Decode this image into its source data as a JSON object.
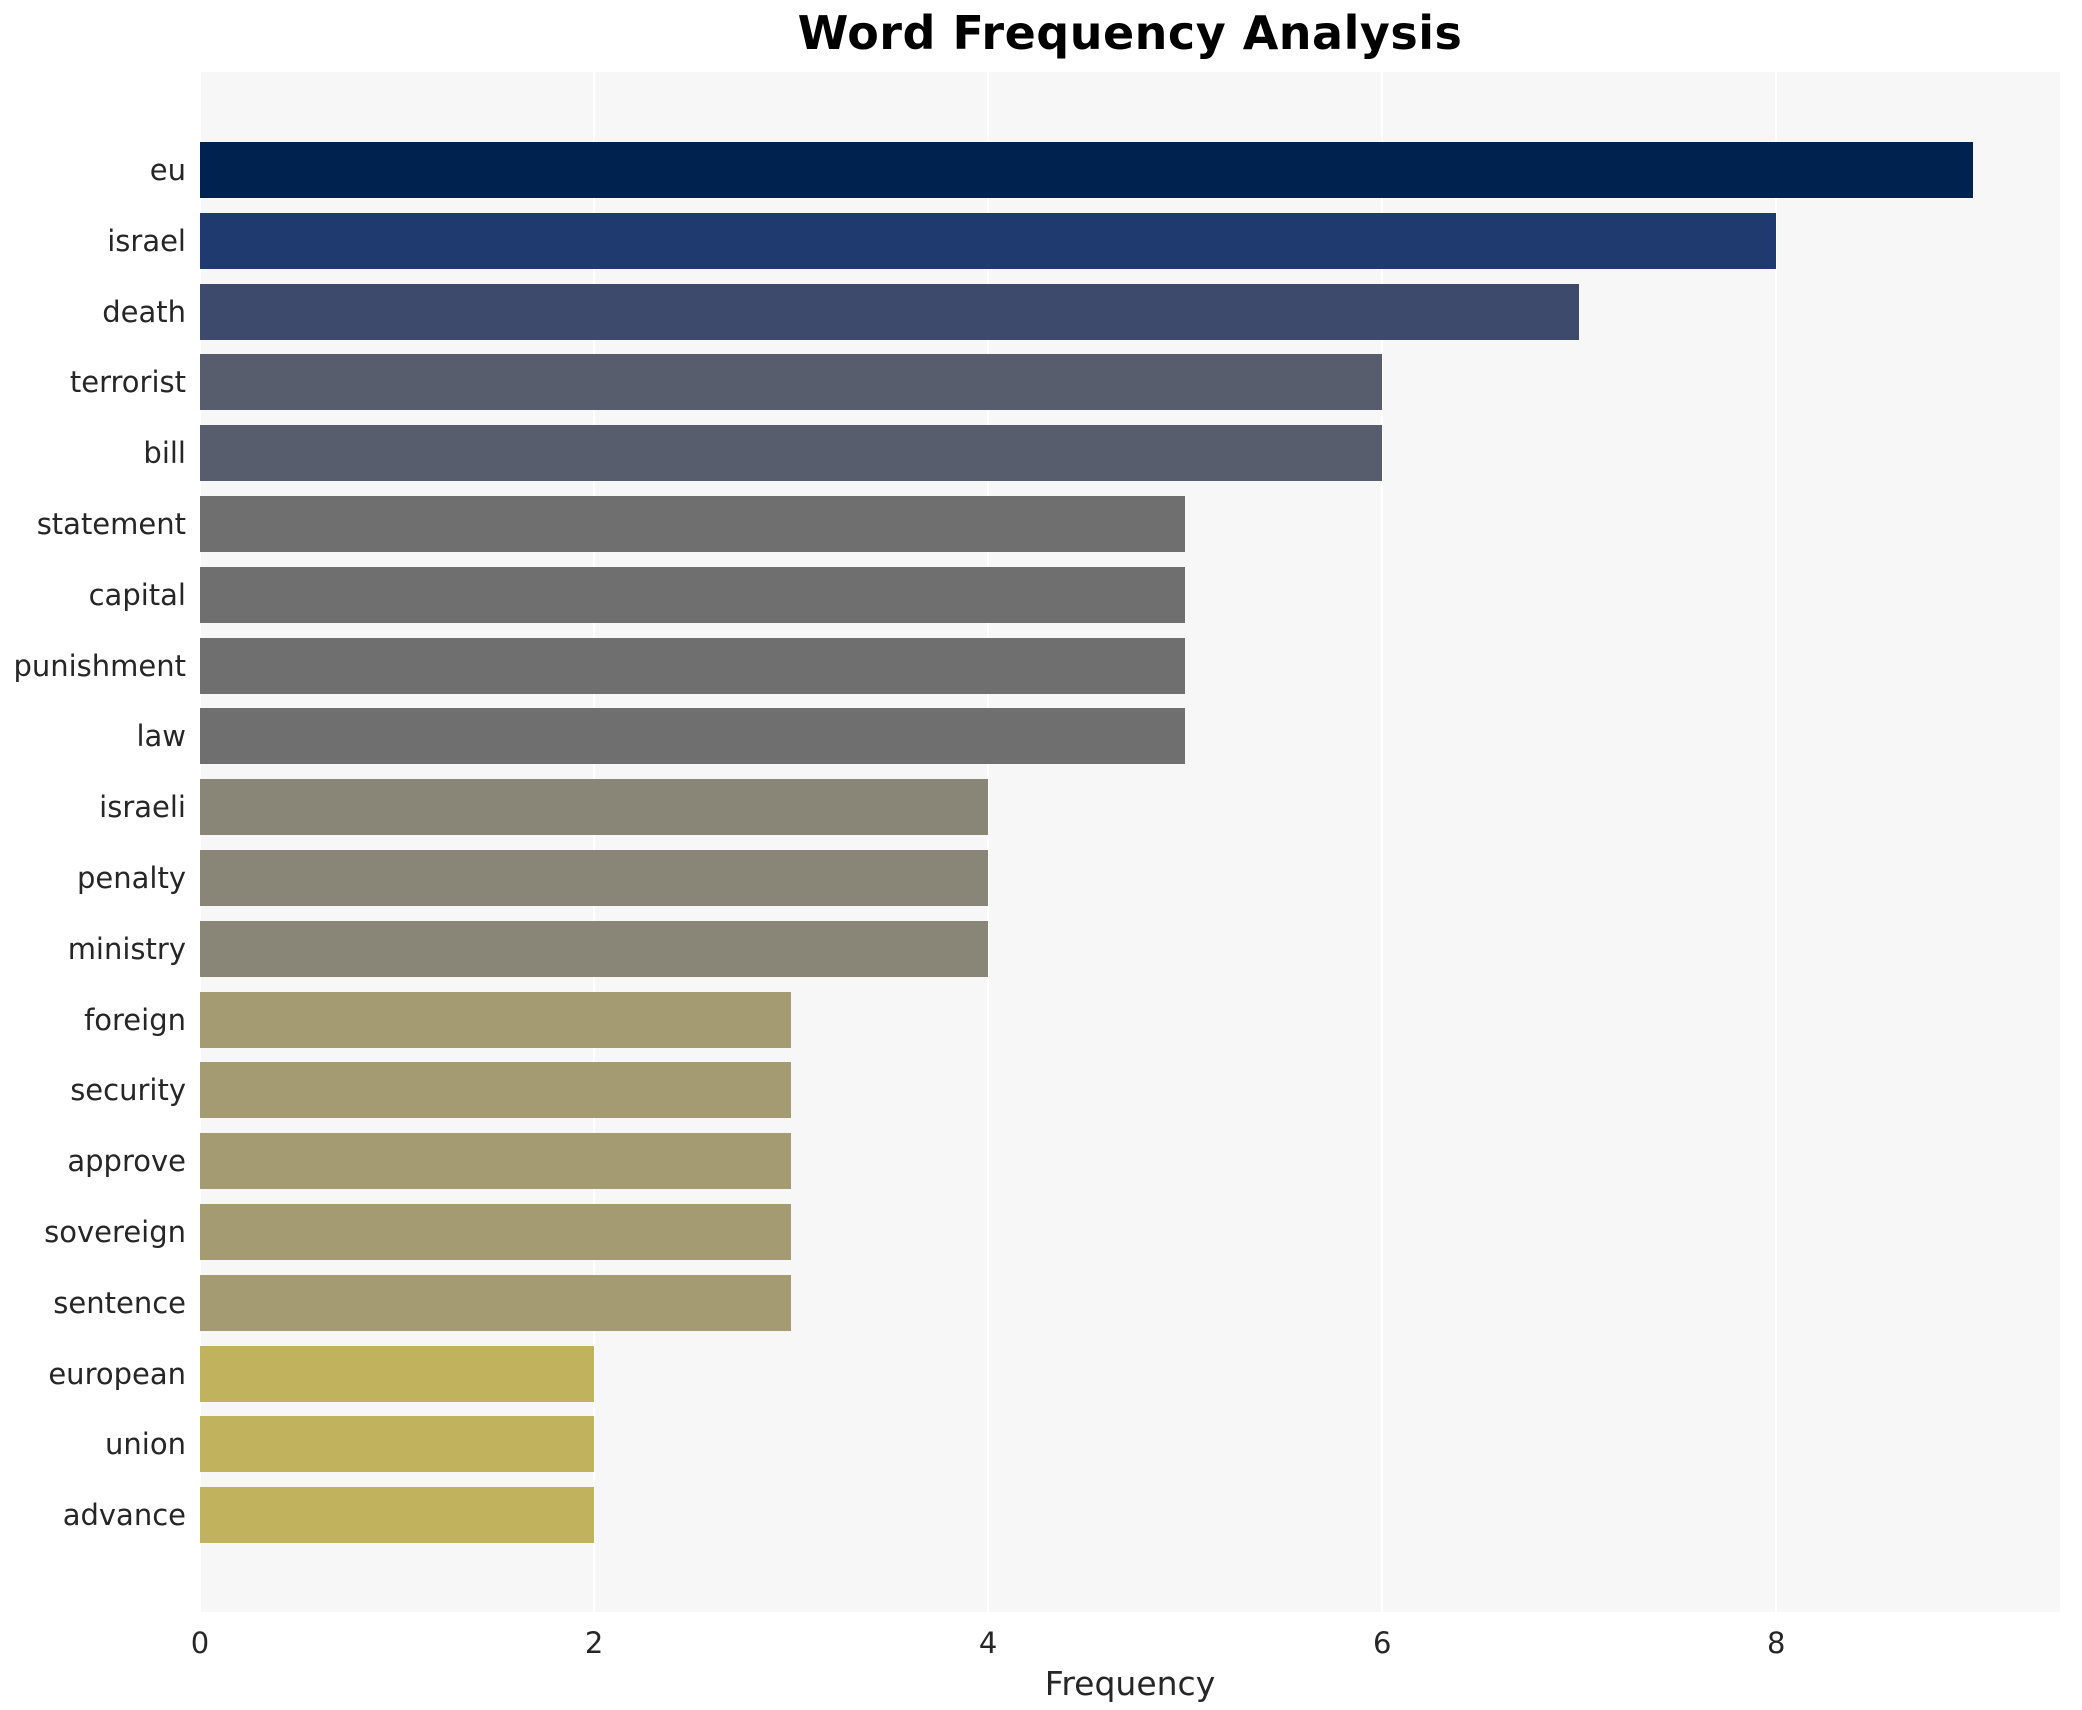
{
  "chart_data": {
    "type": "bar",
    "orientation": "horizontal",
    "title": "Word Frequency Analysis",
    "xlabel": "Frequency",
    "ylabel": "",
    "categories": [
      "eu",
      "israel",
      "death",
      "terrorist",
      "bill",
      "statement",
      "capital",
      "punishment",
      "law",
      "israeli",
      "penalty",
      "ministry",
      "foreign",
      "security",
      "approve",
      "sovereign",
      "sentence",
      "european",
      "union",
      "advance"
    ],
    "values": [
      9,
      8,
      7,
      6,
      6,
      5,
      5,
      5,
      5,
      4,
      4,
      4,
      3,
      3,
      3,
      3,
      3,
      2,
      2,
      2
    ],
    "bar_colors": [
      "#00224e",
      "#1e3a6e",
      "#3e4a6c",
      "#575d6d",
      "#575d6d",
      "#706f6f",
      "#706f6f",
      "#706f6f",
      "#706f6f",
      "#8a8677",
      "#8a8677",
      "#8a8677",
      "#a49b72",
      "#a49b72",
      "#a49b72",
      "#a49b72",
      "#a49b72",
      "#c1b25e",
      "#c1b25e",
      "#c1b25e"
    ],
    "xlim": [
      0,
      9.44
    ],
    "xticks": [
      0,
      2,
      4,
      6,
      8
    ],
    "xtick_labels": [
      "0",
      "2",
      "4",
      "6",
      "8"
    ],
    "grid": true,
    "legend": false,
    "plot_bg_color": "#f7f7f8",
    "grid_color": "#ffffff",
    "figure_bg_color": "#ffffff",
    "text_color": "#262626",
    "title_color": "#000000"
  }
}
